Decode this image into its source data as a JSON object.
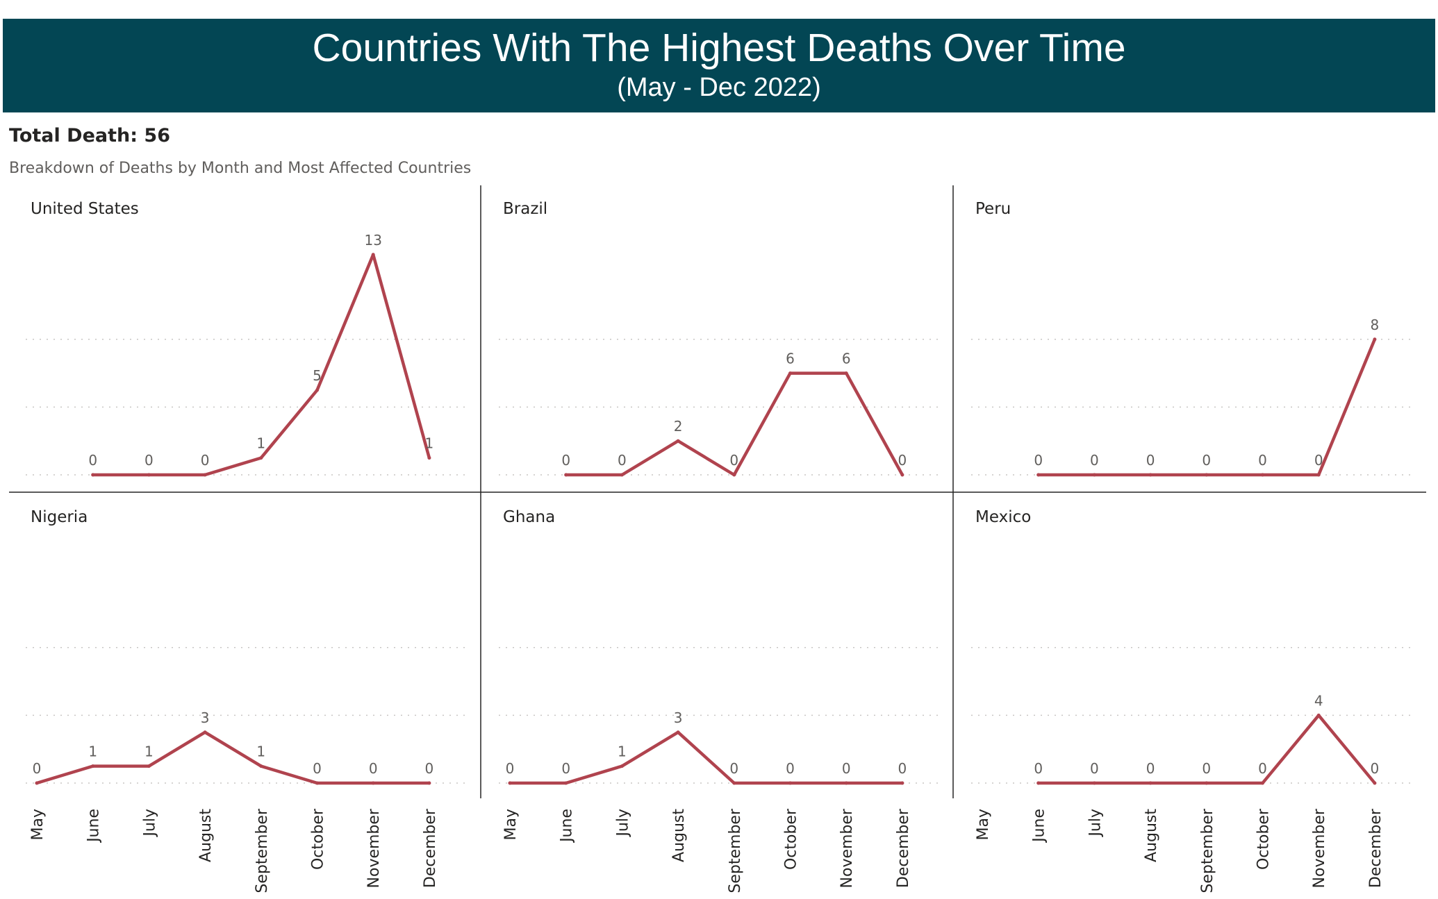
{
  "header": {
    "title": "Countries With The Highest Deaths Over Time",
    "subtitle": "(May - Dec 2022)"
  },
  "summary": {
    "total": "Total Death: 56",
    "caption": "Breakdown of Deaths by Month and Most Affected Countries"
  },
  "colors": {
    "banner": "#034654",
    "line": "#b0434e",
    "grid": "#c8c6c4",
    "divider": "#252423"
  },
  "chart_data": {
    "type": "line",
    "layout": "small-multiples",
    "x": [
      "May",
      "June",
      "July",
      "August",
      "September",
      "October",
      "November",
      "December"
    ],
    "ylim": [
      0,
      16
    ],
    "grid": true,
    "series": [
      {
        "name": "United States",
        "values": [
          null,
          0,
          0,
          0,
          1,
          5,
          13,
          1
        ]
      },
      {
        "name": "Brazil",
        "values": [
          null,
          0,
          0,
          2,
          0,
          6,
          6,
          0
        ]
      },
      {
        "name": "Peru",
        "values": [
          null,
          0,
          0,
          0,
          0,
          0,
          0,
          8
        ]
      },
      {
        "name": "Nigeria",
        "values": [
          0,
          1,
          1,
          3,
          1,
          0,
          0,
          0
        ]
      },
      {
        "name": "Ghana",
        "values": [
          0,
          0,
          1,
          3,
          0,
          0,
          0,
          0
        ]
      },
      {
        "name": "Mexico",
        "values": [
          null,
          0,
          0,
          0,
          0,
          0,
          4,
          0
        ]
      }
    ]
  }
}
